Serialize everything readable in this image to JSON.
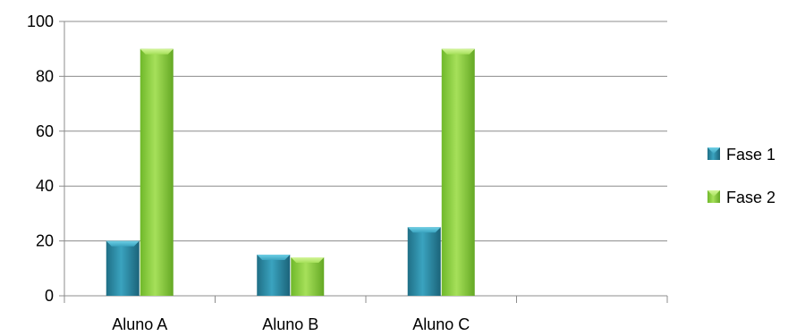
{
  "chart_data": {
    "type": "bar",
    "categories": [
      "Aluno A",
      "Aluno B",
      "Aluno C",
      ""
    ],
    "series": [
      {
        "name": "Fase 1",
        "values": [
          20,
          15,
          25,
          null
        ],
        "color": "#2e8fa8"
      },
      {
        "name": "Fase 2",
        "values": [
          90,
          14,
          90,
          null
        ],
        "color": "#8ccf3c"
      }
    ],
    "y_ticks": [
      "0",
      "20",
      "40",
      "60",
      "80",
      "100"
    ],
    "ylim": [
      0,
      100
    ],
    "grid": true,
    "legend_position": "right"
  }
}
